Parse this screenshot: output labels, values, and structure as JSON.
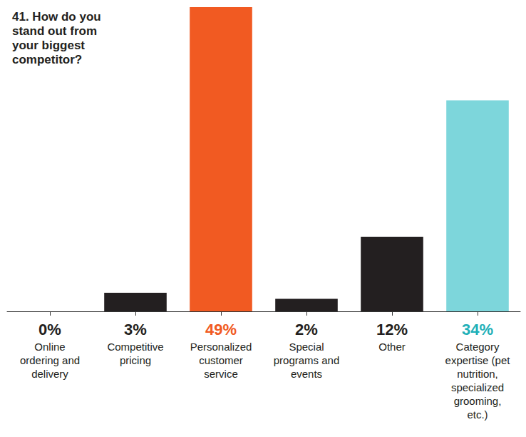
{
  "chart_data": {
    "type": "bar",
    "title": "41. How do you stand out from your biggest competitor?",
    "categories": [
      "Online ordering and delivery",
      "Competitive pricing",
      "Personalized customer service",
      "Special programs and events",
      "Other",
      "Category expertise (pet nutrition, specialized grooming, etc.)"
    ],
    "values": [
      0,
      3,
      49,
      2,
      12,
      34
    ],
    "value_labels": [
      "0%",
      "3%",
      "49%",
      "2%",
      "12%",
      "34%"
    ],
    "colors": [
      "#231f20",
      "#231f20",
      "#f15a22",
      "#231f20",
      "#231f20",
      "#7dd6db"
    ],
    "ylim": [
      0,
      49
    ],
    "data_labels": true,
    "tick_labels": "x",
    "grid": false
  }
}
